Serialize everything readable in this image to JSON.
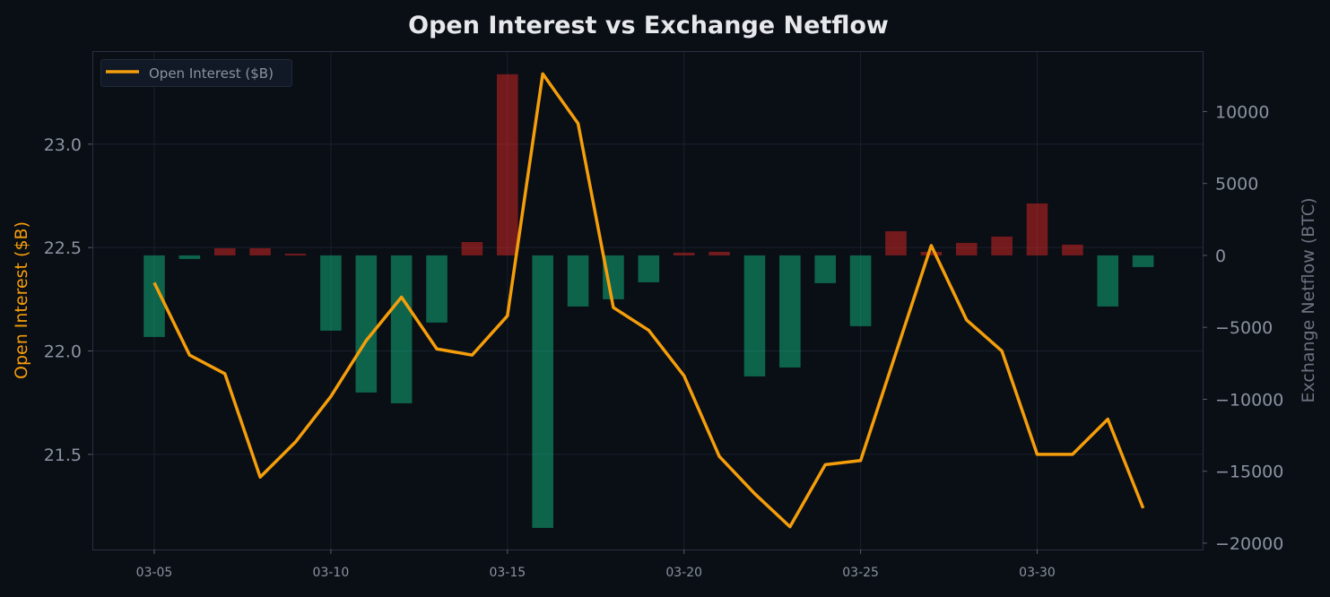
{
  "chart_data": {
    "type": "bar+line",
    "title": "Open Interest vs Exchange Netflow",
    "x": [
      "03-05",
      "03-06",
      "03-07",
      "03-08",
      "03-09",
      "03-10",
      "03-11",
      "03-12",
      "03-13",
      "03-14",
      "03-15",
      "03-16",
      "03-17",
      "03-18",
      "03-19",
      "03-20",
      "03-21",
      "03-22",
      "03-23",
      "03-24",
      "03-25",
      "03-26",
      "03-27",
      "03-28",
      "03-29",
      "03-30",
      "03-31",
      "04-01",
      "04-02"
    ],
    "x_ticks": [
      "03-05",
      "03-10",
      "03-15",
      "03-20",
      "03-25",
      "03-30"
    ],
    "ylabel_left": "Open Interest ($B)",
    "ylabel_right": "Exchange Netflow (BTC)",
    "ylim_left": [
      21.04,
      23.45
    ],
    "ylim_right": [
      -20440,
      14200
    ],
    "yticks_left": [
      "21.5",
      "22.0",
      "22.5",
      "23.0"
    ],
    "yticks_left_values": [
      21.5,
      22.0,
      22.5,
      23.0
    ],
    "yticks_right": [
      "−20000",
      "−15000",
      "−10000",
      "−5000",
      "0",
      "5000",
      "10000"
    ],
    "yticks_right_values": [
      -20000,
      -15000,
      -10000,
      -5000,
      0,
      5000,
      10000
    ],
    "grid": true,
    "legend": {
      "position": "top-left",
      "entries": [
        "Open Interest ($B)"
      ]
    },
    "series": [
      {
        "name": "Open Interest ($B)",
        "type": "line",
        "axis": "left",
        "color": "#f59e0b",
        "values": [
          22.33,
          21.98,
          21.89,
          21.39,
          21.56,
          21.78,
          22.05,
          22.26,
          22.01,
          21.98,
          22.17,
          23.34,
          23.1,
          22.21,
          22.1,
          21.88,
          21.49,
          21.31,
          21.15,
          21.45,
          21.47,
          21.99,
          22.51,
          22.15,
          22.0,
          21.5,
          21.5,
          21.67,
          21.24
        ]
      },
      {
        "type": "bar",
        "axis": "right",
        "values": [
          -5670,
          -250,
          500,
          500,
          120,
          -5230,
          -9530,
          -10280,
          -4670,
          930,
          12590,
          -18940,
          -3550,
          -3050,
          -1870,
          190,
          250,
          -8410,
          -7790,
          -1930,
          -4920,
          1680,
          250,
          870,
          1310,
          3610,
          750,
          -3550,
          -810
        ]
      }
    ],
    "colors": {
      "background": "#0a0e15",
      "positive_bar": "#dc2626",
      "negative_bar": "#10b981",
      "line": "#f59e0b",
      "grid": "#1a212d",
      "text": "#8b93a1",
      "title": "#e6e8ec"
    }
  }
}
